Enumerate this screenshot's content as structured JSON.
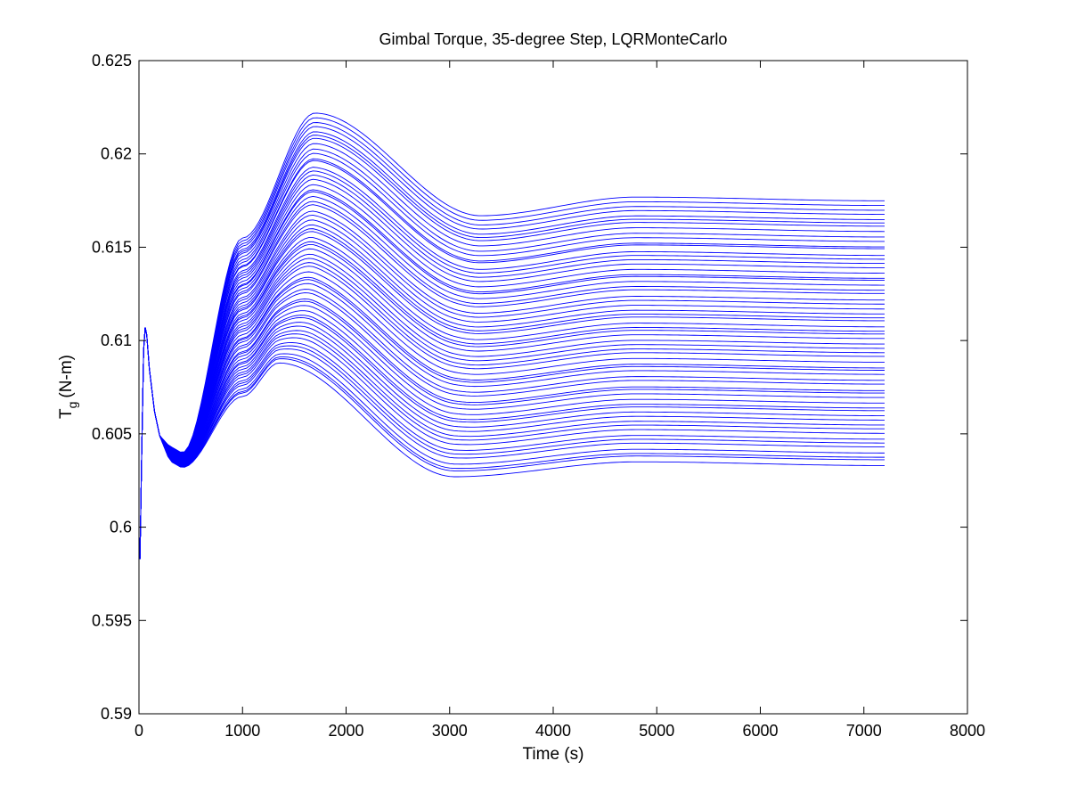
{
  "chart_data": {
    "type": "line",
    "title": "Gimbal Torque, 35-degree Step, LQRMonteCarlo",
    "xlabel": "Time (s)",
    "ylabel_main": "T",
    "ylabel_sub": "g",
    "ylabel_unit": "(N-m)",
    "xlim": [
      0,
      8000
    ],
    "ylim": [
      0.59,
      0.625
    ],
    "xticks": [
      0,
      1000,
      2000,
      3000,
      4000,
      5000,
      6000,
      7000,
      8000
    ],
    "xtick_labels": [
      "0",
      "1000",
      "2000",
      "3000",
      "4000",
      "5000",
      "6000",
      "7000",
      "8000"
    ],
    "yticks": [
      0.59,
      0.595,
      0.6,
      0.605,
      0.61,
      0.615,
      0.62,
      0.625
    ],
    "ytick_labels": [
      "0.59",
      "0.595",
      "0.6",
      "0.605",
      "0.61",
      "0.615",
      "0.62",
      "0.625"
    ],
    "grid": false,
    "series_color": "#0000ff",
    "num_runs": 60,
    "run_time_end": 7200,
    "shared_initial_transient": {
      "x": [
        0,
        10,
        25,
        45,
        60,
        75,
        100,
        150,
        200
      ],
      "y": [
        0.5995,
        0.5983,
        0.6035,
        0.6095,
        0.6107,
        0.6103,
        0.6085,
        0.6062,
        0.6049
      ]
    },
    "envelope": {
      "upper": {
        "x": [
          300,
          420,
          1000,
          1700,
          3300,
          4800,
          7200
        ],
        "y": [
          0.6043,
          0.604,
          0.6155,
          0.6222,
          0.6167,
          0.6177,
          0.6175
        ]
      },
      "lower": {
        "x": [
          300,
          420,
          1000,
          1350,
          3050,
          4800,
          7200
        ],
        "y": [
          0.6035,
          0.6032,
          0.607,
          0.6088,
          0.6027,
          0.6035,
          0.6033
        ]
      }
    }
  }
}
